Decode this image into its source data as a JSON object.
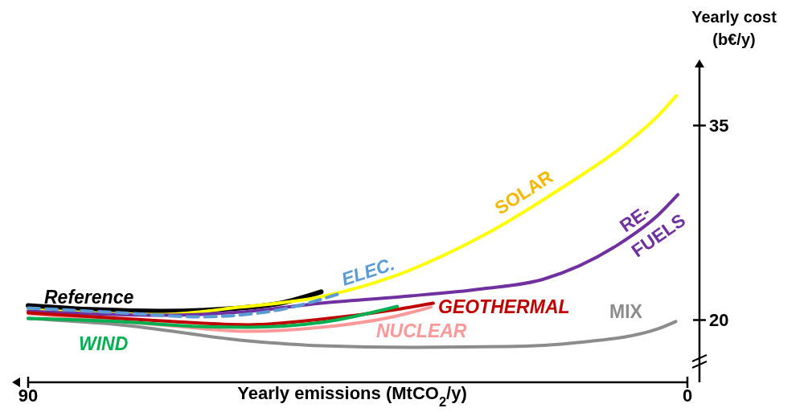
{
  "chart_data": {
    "type": "line",
    "xlabel": "Yearly emissions (MtCO$_{2}$/y)",
    "ylabel": "Yearly cost (b€/y)",
    "xlim": [
      90,
      0
    ],
    "xticks": [
      90,
      0
    ],
    "ylim": [
      15.2,
      39.6
    ],
    "yticks": [
      20,
      35
    ],
    "grid": false,
    "legend": false,
    "series": [
      {
        "name": "Reference",
        "color": "#000000",
        "x": [
          90,
          80.7,
          71.9,
          61,
          55.5,
          50
        ],
        "values": [
          21.12,
          20.8,
          20.68,
          20.93,
          21.3,
          22.17
        ]
      },
      {
        "name": "SOLAR",
        "color": "#ffff00",
        "x": [
          90,
          71.9,
          61,
          50,
          40.2,
          28.1,
          17.2,
          8.4,
          4,
          1.5
        ],
        "values": [
          20.8,
          20.43,
          21,
          21.8,
          23.35,
          26.45,
          30.17,
          33.58,
          35.75,
          37.3
        ]
      },
      {
        "name": "RE-FUELS",
        "color": "#7030a0",
        "x": [
          90,
          71.9,
          61,
          50,
          39.1,
          28.1,
          19.6,
          9.5,
          4,
          1.3
        ],
        "values": [
          20.68,
          20.37,
          20.62,
          21.3,
          21.8,
          22.4,
          23.16,
          25.8,
          28.1,
          29.67
        ]
      },
      {
        "name": "MIX",
        "color": "#8c8c8c",
        "x": [
          90,
          77.4,
          59.9,
          50,
          36.9,
          24.8,
          15,
          4,
          1.6
        ],
        "values": [
          20.12,
          19.63,
          18.39,
          18.02,
          17.9,
          17.95,
          18.26,
          19.32,
          19.88
        ]
      },
      {
        "name": "NUCLEAR",
        "color": "#ff9999",
        "x": [
          90,
          71.9,
          59.9,
          50,
          40.2,
          35
        ],
        "values": [
          20.5,
          19.63,
          19.13,
          19.44,
          20.25,
          21
        ]
      },
      {
        "name": "GEOTHERMAL",
        "color": "#c00000",
        "x": [
          90,
          71.9,
          59.9,
          50,
          39.1,
          34.7
        ],
        "values": [
          20.56,
          19.94,
          19.63,
          20.06,
          20.87,
          21.3
        ]
      },
      {
        "name": "WIND",
        "color": "#00b050",
        "x": [
          90,
          77.4,
          66.5,
          59.9,
          50,
          39.6
        ],
        "values": [
          20.12,
          19.88,
          19.5,
          19.44,
          19.81,
          21.05
        ]
      },
      {
        "name": "ELEC.",
        "color": "#5b9bd5",
        "line_style": "dashed",
        "x": [
          90,
          77.4,
          66.5,
          55.5,
          47.8
        ],
        "values": [
          20.93,
          20.56,
          20.25,
          20.81,
          21.98
        ]
      }
    ]
  }
}
